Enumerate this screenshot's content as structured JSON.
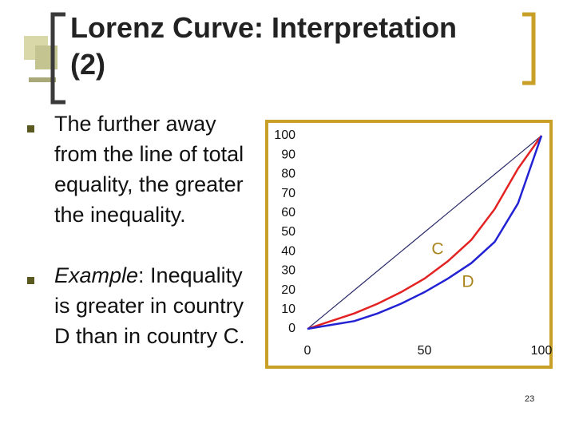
{
  "title": [
    "Lorenz Curve: Interpretation",
    "(2)"
  ],
  "bullets": [
    {
      "text": "The further away from the line of total equality, the greater the inequality."
    },
    {
      "emphasis": "Example",
      "text": ": Inequality is greater in country D than in country C."
    }
  ],
  "page_number": "23",
  "chart_data": {
    "type": "line",
    "x": [
      0,
      10,
      20,
      30,
      40,
      50,
      60,
      70,
      80,
      90,
      100
    ],
    "series": [
      {
        "color": "#2b2b6b",
        "values": [
          0,
          10,
          20,
          30,
          40,
          50,
          60,
          70,
          80,
          90,
          100
        ]
      },
      {
        "color": "#e32222",
        "values": [
          0,
          4,
          8,
          13,
          19,
          26,
          35,
          46,
          62,
          83,
          100
        ]
      },
      {
        "color": "#2222d4",
        "values": [
          0,
          2,
          4,
          8,
          13,
          19,
          26,
          34,
          45,
          65,
          100
        ]
      }
    ],
    "annotations": [
      "C",
      "D"
    ],
    "annotation_color": "#a8841c",
    "xlim": [
      0,
      100
    ],
    "xticks": [
      0,
      50,
      100
    ],
    "ylim": [
      0,
      100
    ],
    "yticks": [
      0,
      10,
      20,
      30,
      40,
      50,
      60,
      70,
      80,
      90,
      100
    ]
  }
}
